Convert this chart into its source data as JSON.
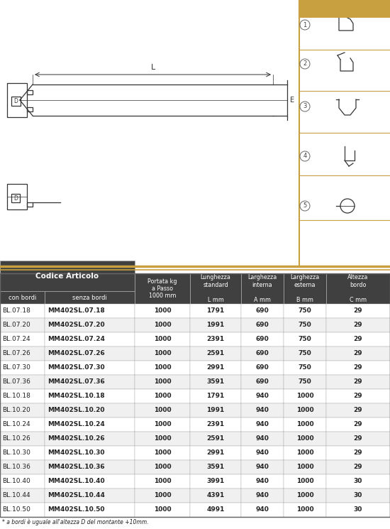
{
  "bg_color": "#ffffff",
  "top_bar_color": "#c8a040",
  "divider_color": "#c8a040",
  "table_header_bg": "#404040",
  "table_header_text": "#ffffff",
  "table_row_bg1": "#ffffff",
  "table_row_bg2": "#f0f0f0",
  "table_border_color": "#aaaaaa",
  "table_text_color": "#222222",
  "header_col1": "Codice Articolo",
  "header_sub1": "con bordi",
  "header_sub2": "senza bordi",
  "header_col3": "Portata kg\na Passo\n1000 mm",
  "header_col4": "Lunghezza\nstandard\n\nL mm",
  "header_col5": "Larghezza\ninterna\n\nA mm",
  "header_col6": "Larghezza\nesterna\n\nB mm",
  "header_col7": "Altezza\nbordo\n\nC mm",
  "rows": [
    [
      "BL.07.18",
      "MM402SL.07.18",
      "1000",
      "1791",
      "690",
      "750",
      "29"
    ],
    [
      "BL.07.20",
      "MM402SL.07.20",
      "1000",
      "1991",
      "690",
      "750",
      "29"
    ],
    [
      "BL.07.24",
      "MM402SL.07.24",
      "1000",
      "2391",
      "690",
      "750",
      "29"
    ],
    [
      "BL.07.26",
      "MM402SL.07.26",
      "1000",
      "2591",
      "690",
      "750",
      "29"
    ],
    [
      "BL.07.30",
      "MM402SL.07.30",
      "1000",
      "2991",
      "690",
      "750",
      "29"
    ],
    [
      "BL.07.36",
      "MM402SL.07.36",
      "1000",
      "3591",
      "690",
      "750",
      "29"
    ],
    [
      "BL.10.18",
      "MM402SL.10.18",
      "1000",
      "1791",
      "940",
      "1000",
      "29"
    ],
    [
      "BL.10.20",
      "MM402SL.10.20",
      "1000",
      "1991",
      "940",
      "1000",
      "29"
    ],
    [
      "BL.10.24",
      "MM402SL.10.24",
      "1000",
      "2391",
      "940",
      "1000",
      "29"
    ],
    [
      "BL.10.26",
      "MM402SL.10.26",
      "1000",
      "2591",
      "940",
      "1000",
      "29"
    ],
    [
      "BL.10.30",
      "MM402SL.10.30",
      "1000",
      "2991",
      "940",
      "1000",
      "29"
    ],
    [
      "BL.10.36",
      "MM402SL.10.36",
      "1000",
      "3591",
      "940",
      "1000",
      "29"
    ],
    [
      "BL.10.40",
      "MM402SL.10.40",
      "1000",
      "3991",
      "940",
      "1000",
      "30"
    ],
    [
      "BL.10.44",
      "MM402SL.10.44",
      "1000",
      "4391",
      "940",
      "1000",
      "30"
    ],
    [
      "BL.10.50",
      "MM402SL.10.50",
      "1000",
      "4991",
      "940",
      "1000",
      "30"
    ]
  ],
  "footnote": "* a bordi è uguale all'altezza D del montante +10mm.",
  "diagram_line_color": "#333333",
  "col_lefts": [
    0,
    63,
    190,
    268,
    340,
    400,
    460
  ],
  "col_rights": [
    63,
    190,
    268,
    340,
    400,
    460,
    550
  ]
}
